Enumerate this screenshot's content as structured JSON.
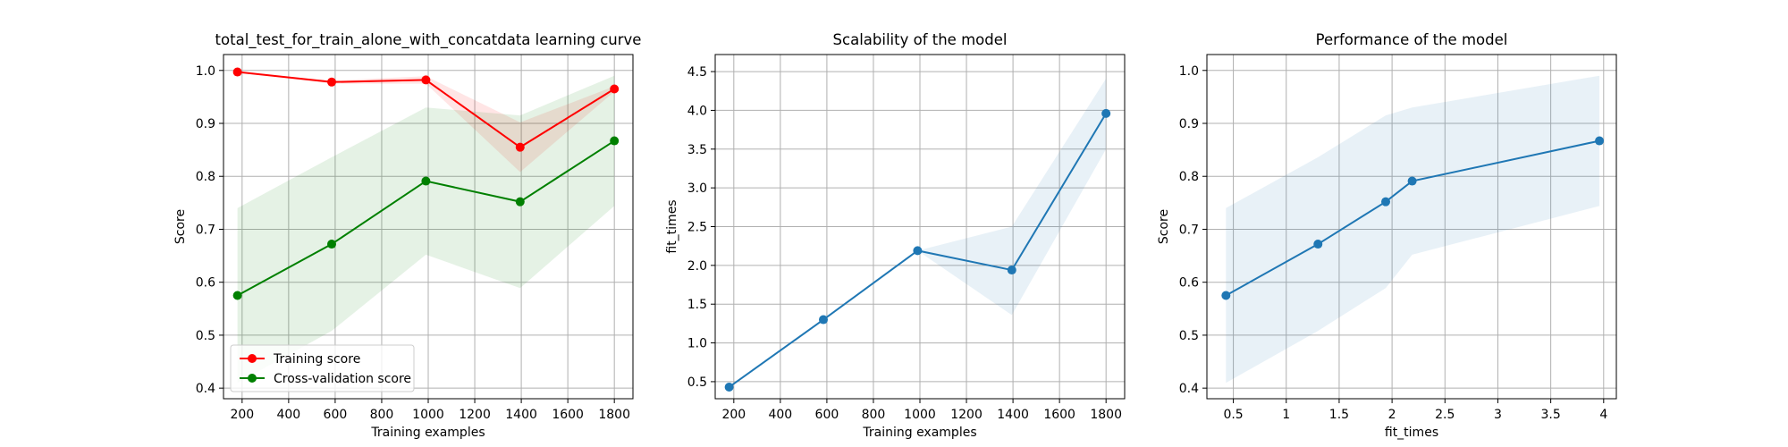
{
  "chart_data": [
    {
      "type": "line",
      "title": "total_test_for_train_alone_with_concatdata learning curve",
      "xlabel": "Training examples",
      "ylabel": "Score",
      "xlim": [
        120,
        1880
      ],
      "ylim": [
        0.38,
        1.03
      ],
      "xticks": [
        200,
        400,
        600,
        800,
        1000,
        1200,
        1400,
        1600,
        1800
      ],
      "yticks": [
        0.4,
        0.5,
        0.6,
        0.7,
        0.8,
        0.9,
        1.0
      ],
      "ytick_decimals": 1,
      "grid": true,
      "legend": "lower-left",
      "x": [
        180,
        585,
        990,
        1395,
        1800
      ],
      "series": [
        {
          "name": "Training score",
          "color": "#ff0000",
          "values": [
            0.997,
            0.978,
            0.982,
            0.855,
            0.965
          ],
          "band_lower": [
            0.997,
            0.975,
            0.975,
            0.808,
            0.96
          ],
          "band_upper": [
            0.997,
            0.981,
            0.989,
            0.902,
            0.97
          ]
        },
        {
          "name": "Cross-validation score",
          "color": "#008000",
          "values": [
            0.575,
            0.672,
            0.791,
            0.752,
            0.867
          ],
          "band_lower": [
            0.41,
            0.508,
            0.652,
            0.589,
            0.744
          ],
          "band_upper": [
            0.74,
            0.836,
            0.93,
            0.915,
            0.99
          ]
        }
      ]
    },
    {
      "type": "line",
      "title": "Scalability of the model",
      "xlabel": "Training examples",
      "ylabel": "fit_times",
      "xlim": [
        120,
        1880
      ],
      "ylim": [
        0.28,
        4.72
      ],
      "xticks": [
        200,
        400,
        600,
        800,
        1000,
        1200,
        1400,
        1600,
        1800
      ],
      "yticks": [
        0.5,
        1.0,
        1.5,
        2.0,
        2.5,
        3.0,
        3.5,
        4.0,
        4.5
      ],
      "ytick_decimals": 1,
      "grid": true,
      "legend": "",
      "x": [
        180,
        585,
        990,
        1395,
        1800
      ],
      "series": [
        {
          "color": "#1f77b4",
          "values": [
            0.43,
            1.3,
            2.19,
            1.94,
            3.96
          ],
          "band_lower": [
            0.43,
            1.3,
            2.19,
            1.36,
            3.5
          ],
          "band_upper": [
            0.43,
            1.3,
            2.19,
            2.5,
            4.41
          ]
        }
      ]
    },
    {
      "type": "line",
      "title": "Performance of the model",
      "xlabel": "fit_times",
      "ylabel": "Score",
      "xlim": [
        0.25,
        4.12
      ],
      "ylim": [
        0.38,
        1.03
      ],
      "xticks": [
        0.5,
        1.0,
        1.5,
        2.0,
        2.5,
        3.0,
        3.5,
        4.0
      ],
      "yticks": [
        0.4,
        0.5,
        0.6,
        0.7,
        0.8,
        0.9,
        1.0
      ],
      "ytick_decimals": 1,
      "grid": true,
      "legend": "",
      "x": [
        0.43,
        1.3,
        1.94,
        2.19,
        3.96
      ],
      "series": [
        {
          "color": "#1f77b4",
          "values": [
            0.575,
            0.672,
            0.752,
            0.791,
            0.867
          ],
          "band_lower": [
            0.41,
            0.508,
            0.589,
            0.652,
            0.744
          ],
          "band_upper": [
            0.74,
            0.836,
            0.915,
            0.93,
            0.99
          ]
        }
      ]
    }
  ]
}
